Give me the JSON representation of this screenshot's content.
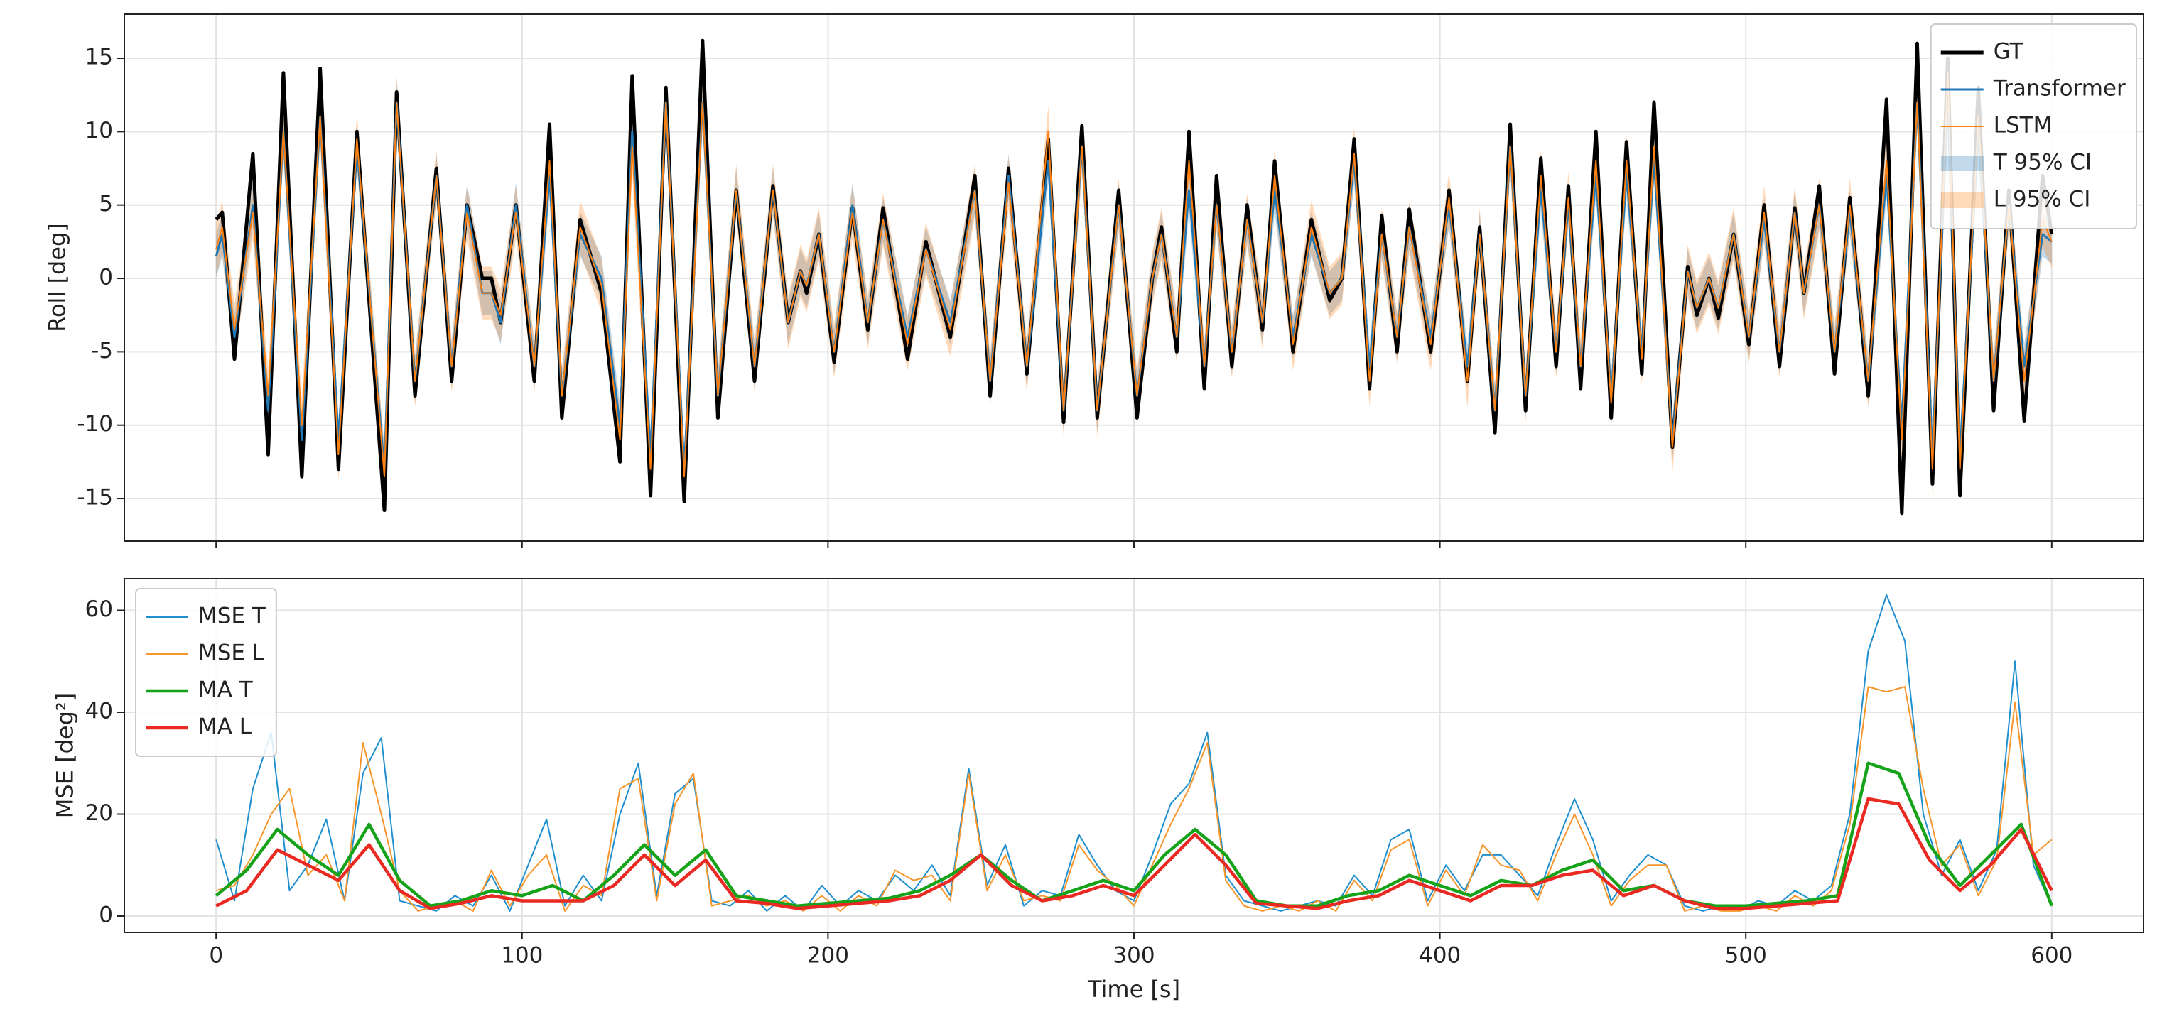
{
  "chart_data": [
    {
      "type": "line",
      "ylabel": "Roll [deg]",
      "grid": true,
      "legend": "upper right",
      "xtick_labels": false,
      "xlim": [
        -30,
        630
      ],
      "ylim": [
        -17.9,
        18
      ],
      "xticks": [
        0,
        100,
        200,
        300,
        400,
        500,
        600
      ],
      "yticks": [
        -15,
        -10,
        -5,
        0,
        5,
        10,
        15
      ],
      "x": [
        0,
        2,
        6,
        12,
        17,
        22,
        28,
        34,
        40,
        46,
        55,
        59,
        65,
        72,
        77,
        82,
        87,
        90,
        93,
        98,
        104,
        109,
        113,
        119,
        126,
        132,
        136,
        142,
        147,
        153,
        159,
        164,
        170,
        176,
        182,
        187,
        191,
        193,
        197,
        202,
        208,
        213,
        218,
        226,
        232,
        240,
        248,
        253,
        259,
        265,
        272,
        277,
        283,
        288,
        295,
        301,
        306,
        309,
        314,
        318,
        323,
        327,
        332,
        337,
        342,
        346,
        352,
        358,
        364,
        368,
        372,
        377,
        381,
        386,
        390,
        397,
        403,
        409,
        413,
        418,
        423,
        428,
        433,
        438,
        442,
        446,
        451,
        456,
        461,
        466,
        470,
        476,
        481,
        484,
        488,
        491,
        496,
        501,
        506,
        511,
        516,
        519,
        524,
        529,
        534,
        540,
        546,
        551,
        556,
        561,
        566,
        570,
        576,
        581,
        586,
        591,
        597,
        600
      ],
      "series": [
        {
          "name": "GT",
          "color": "#000000",
          "width": 5,
          "values": [
            4,
            4.5,
            -5.5,
            8.5,
            -12,
            14,
            -13.5,
            14.3,
            -13,
            10,
            -15.8,
            12.7,
            -8,
            7.5,
            -7,
            5,
            0,
            0,
            -3,
            5,
            -7,
            10.5,
            -9.5,
            4,
            -1,
            -12.5,
            13.8,
            -14.8,
            13,
            -15.2,
            16.2,
            -9.5,
            6,
            -7,
            6.3,
            -3,
            0.5,
            -1,
            3,
            -5.7,
            4.8,
            -3.5,
            4.8,
            -5.5,
            2.5,
            -4,
            7,
            -8,
            7.5,
            -6.5,
            9.5,
            -9.8,
            10.4,
            -9.5,
            6,
            -9.5,
            0,
            3.5,
            -5,
            10,
            -7.5,
            7,
            -6,
            5,
            -3.5,
            8,
            -5,
            4,
            -1.5,
            0,
            9.5,
            -7.5,
            4.3,
            -5,
            4.7,
            -5,
            6,
            -7,
            3.5,
            -10.5,
            10.5,
            -9,
            8.2,
            -6,
            6.3,
            -7.5,
            10,
            -9.5,
            9.3,
            -6.5,
            12,
            -11.5,
            0.8,
            -2.5,
            0,
            -2.7,
            3,
            -4.5,
            5,
            -6,
            4.8,
            -1,
            6.3,
            -6.5,
            5.5,
            -8,
            12.2,
            -16,
            16,
            -14,
            15,
            -14.8,
            13,
            -9,
            6,
            -9.7,
            7,
            3
          ]
        },
        {
          "name": "Transformer",
          "color": "#1f77b4",
          "width": 3,
          "values": [
            1.5,
            3,
            -4,
            5,
            -9,
            10,
            -11,
            11,
            -11,
            9,
            -13,
            12,
            -7,
            7,
            -6,
            5,
            -1,
            -1,
            -3,
            5,
            -6,
            7,
            -8,
            3,
            0,
            -10,
            10,
            -12,
            12,
            -13,
            12,
            -8,
            6,
            -6,
            6,
            -3,
            0.5,
            -0.5,
            3,
            -5,
            5,
            -3,
            4,
            -4,
            2,
            -3,
            6,
            -7,
            7,
            -6,
            8,
            -9,
            9,
            -9,
            5,
            -8,
            0,
            3,
            -4,
            6,
            -6,
            5,
            -5,
            4,
            -3,
            6,
            -4,
            3,
            -1,
            0,
            8,
            -6,
            3,
            -4,
            3.5,
            -4,
            5,
            -6,
            3,
            -9,
            9,
            -8,
            6,
            -5,
            5,
            -6,
            7,
            -8,
            7,
            -5,
            8,
            -11,
            0.5,
            -2,
            0,
            -2,
            3,
            -4,
            4,
            -5,
            4.5,
            -1,
            5,
            -5,
            4.5,
            -7,
            7,
            -10,
            12,
            -12,
            12,
            -12,
            10,
            -7,
            5,
            -6,
            3,
            2.5
          ]
        },
        {
          "name": "LSTM",
          "color": "#ff7f0e",
          "width": 2,
          "values": [
            2,
            3.5,
            -3.5,
            4.5,
            -8,
            10,
            -10,
            11,
            -12,
            9.5,
            -13.5,
            12,
            -7,
            7,
            -6,
            4.5,
            -1,
            -1,
            -2.5,
            4.5,
            -6,
            8,
            -8,
            3.5,
            -0.5,
            -11,
            9,
            -13,
            12,
            -13.5,
            12,
            -8,
            6,
            -6,
            6,
            -3,
            0.5,
            -0.5,
            3,
            -5,
            4.5,
            -3,
            4,
            -4.5,
            2,
            -3.5,
            6,
            -7,
            6.5,
            -6,
            10,
            -9,
            9,
            -9,
            5,
            -8,
            0,
            3,
            -4,
            8,
            -6,
            5,
            -5,
            4,
            -3,
            7,
            -4.5,
            3.5,
            -1,
            0,
            8.5,
            -7,
            3,
            -4,
            3.5,
            -4.5,
            5.5,
            -7,
            3,
            -9,
            9,
            -8,
            7,
            -5,
            5.5,
            -6,
            8,
            -8.5,
            8,
            -5.5,
            9,
            -11.5,
            0.5,
            -2,
            0,
            -2,
            3,
            -4,
            4.5,
            -5,
            4.5,
            -1,
            5,
            -5,
            5,
            -7,
            8,
            -11,
            12,
            -13,
            14,
            -13,
            11,
            -7,
            5,
            -7,
            4,
            2.5
          ]
        }
      ],
      "bands": [
        {
          "name": "T 95% CI",
          "color": "#1f77b4",
          "around": "Transformer",
          "halfwidth": 1.5
        },
        {
          "name": "L 95% CI",
          "color": "#ff7f0e",
          "around": "LSTM",
          "halfwidth": 1.8
        }
      ]
    },
    {
      "type": "line",
      "xlabel": "Time [s]",
      "ylabel": "MSE [deg²]",
      "grid": true,
      "legend": "upper left",
      "xlim": [
        -30,
        630
      ],
      "ylim": [
        -3.2,
        66.2
      ],
      "xticks": [
        0,
        100,
        200,
        300,
        400,
        500,
        600
      ],
      "yticks": [
        0,
        20,
        40,
        60
      ],
      "x": [
        0,
        6,
        12,
        18,
        24,
        30,
        36,
        42,
        48,
        54,
        60,
        66,
        72,
        78,
        84,
        90,
        96,
        102,
        108,
        114,
        120,
        126,
        132,
        138,
        144,
        150,
        156,
        162,
        168,
        174,
        180,
        186,
        192,
        198,
        204,
        210,
        216,
        222,
        228,
        234,
        240,
        246,
        252,
        258,
        264,
        270,
        276,
        282,
        288,
        294,
        300,
        306,
        312,
        318,
        324,
        330,
        336,
        342,
        348,
        354,
        360,
        366,
        372,
        378,
        384,
        390,
        396,
        402,
        408,
        414,
        420,
        426,
        432,
        438,
        444,
        450,
        456,
        462,
        468,
        474,
        480,
        486,
        492,
        498,
        504,
        510,
        516,
        522,
        528,
        534,
        540,
        546,
        552,
        558,
        564,
        570,
        576,
        582,
        588,
        594,
        600
      ],
      "series": [
        {
          "name": "MSE T",
          "color": "#1f8fd0",
          "width": 2,
          "values": [
            15,
            3,
            25,
            36,
            5,
            10,
            19,
            3,
            28,
            35,
            3,
            2,
            1,
            4,
            2,
            8,
            1,
            10,
            19,
            2,
            8,
            3,
            20,
            30,
            4,
            24,
            27,
            3,
            2,
            5,
            1,
            4,
            1,
            6,
            2,
            5,
            3,
            8,
            5,
            10,
            4,
            29,
            6,
            14,
            2,
            5,
            4,
            16,
            10,
            5,
            3,
            12,
            22,
            26,
            36,
            8,
            3,
            2,
            1,
            2,
            3,
            2,
            8,
            4,
            15,
            17,
            3,
            10,
            5,
            12,
            12,
            8,
            4,
            14,
            23,
            15,
            3,
            8,
            12,
            10,
            2,
            1,
            2,
            1,
            3,
            2,
            5,
            3,
            6,
            20,
            52,
            63,
            54,
            20,
            8,
            15,
            5,
            13,
            50,
            10,
            2
          ]
        },
        {
          "name": "MSE L",
          "color": "#f7962c",
          "width": 2,
          "values": [
            5,
            6,
            12,
            20,
            25,
            8,
            12,
            3,
            34,
            20,
            5,
            1,
            2,
            3,
            1,
            9,
            2,
            8,
            12,
            1,
            6,
            4,
            25,
            27,
            3,
            22,
            28,
            2,
            3,
            4,
            2,
            3,
            1,
            4,
            1,
            4,
            2,
            9,
            7,
            8,
            3,
            28,
            5,
            12,
            3,
            4,
            3,
            14,
            9,
            6,
            2,
            10,
            18,
            25,
            34,
            7,
            2,
            1,
            2,
            1,
            3,
            1,
            7,
            3,
            13,
            15,
            2,
            9,
            4,
            14,
            10,
            9,
            3,
            12,
            20,
            12,
            2,
            7,
            10,
            10,
            1,
            2,
            1,
            1,
            2,
            1,
            4,
            2,
            5,
            18,
            45,
            44,
            45,
            25,
            10,
            14,
            4,
            11,
            42,
            12,
            15
          ]
        },
        {
          "name": "MA T",
          "color": "#16a31a",
          "width": 4.5,
          "x": [
            0,
            10,
            20,
            30,
            40,
            50,
            60,
            70,
            80,
            90,
            100,
            110,
            120,
            130,
            140,
            150,
            160,
            170,
            180,
            190,
            200,
            210,
            220,
            230,
            240,
            250,
            260,
            270,
            280,
            290,
            300,
            310,
            320,
            330,
            340,
            350,
            360,
            370,
            380,
            390,
            400,
            410,
            420,
            430,
            440,
            450,
            460,
            470,
            480,
            490,
            500,
            510,
            520,
            530,
            540,
            550,
            560,
            570,
            580,
            590,
            600
          ],
          "values": [
            4,
            9,
            17,
            12,
            8,
            18,
            7,
            2,
            3,
            5,
            4,
            6,
            3,
            8,
            14,
            8,
            13,
            4,
            3,
            2,
            2.5,
            3,
            3.5,
            5,
            8,
            12,
            7,
            3,
            5,
            7,
            5,
            12,
            17,
            12,
            3,
            2,
            2,
            4,
            5,
            8,
            6,
            4,
            7,
            6,
            9,
            11,
            5,
            6,
            3,
            2,
            2,
            2.5,
            3,
            4,
            30,
            28,
            14,
            6,
            12,
            18,
            2
          ]
        },
        {
          "name": "MA L",
          "color": "#ea2a22",
          "width": 4.5,
          "x": [
            0,
            10,
            20,
            30,
            40,
            50,
            60,
            70,
            80,
            90,
            100,
            110,
            120,
            130,
            140,
            150,
            160,
            170,
            180,
            190,
            200,
            210,
            220,
            230,
            240,
            250,
            260,
            270,
            280,
            290,
            300,
            310,
            320,
            330,
            340,
            350,
            360,
            370,
            380,
            390,
            400,
            410,
            420,
            430,
            440,
            450,
            460,
            470,
            480,
            490,
            500,
            510,
            520,
            530,
            540,
            550,
            560,
            570,
            580,
            590,
            600
          ],
          "values": [
            2,
            5,
            13,
            10,
            7,
            14,
            5,
            1.5,
            2.5,
            4,
            3,
            3,
            3,
            6,
            12,
            6,
            11,
            3,
            2.5,
            1.5,
            2,
            2.5,
            3,
            4,
            7,
            12,
            6,
            3,
            4,
            6,
            4,
            10,
            16,
            10,
            2.5,
            2,
            1.5,
            3,
            4,
            7,
            5,
            3,
            6,
            6,
            8,
            9,
            4,
            6,
            3,
            1.5,
            1.5,
            2,
            2.5,
            3,
            23,
            22,
            11,
            5,
            10,
            17,
            5
          ]
        }
      ]
    }
  ]
}
